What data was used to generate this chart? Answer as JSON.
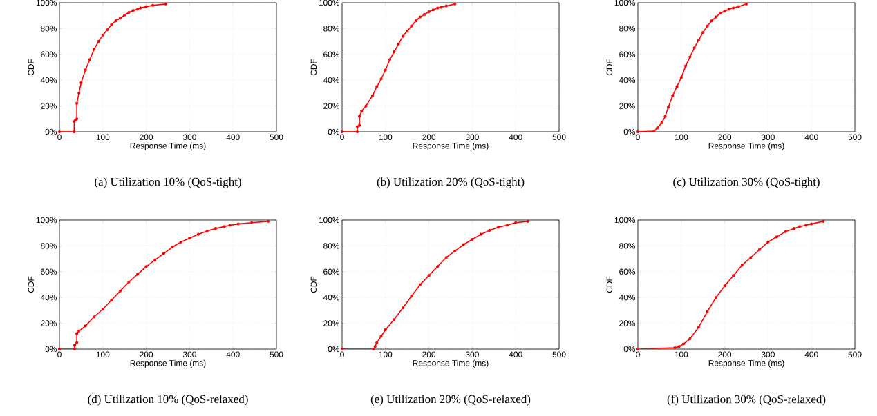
{
  "chart_data": [
    {
      "type": "line",
      "title": "(a) Utilization 10% (QoS-tight)",
      "xlabel": "Response Time (ms)",
      "ylabel": "CDF",
      "color": "#ff0000",
      "marker": "circle",
      "grid": true,
      "xlim": [
        0,
        500
      ],
      "xticks": [
        0,
        100,
        200,
        300,
        400,
        500
      ],
      "ylim": [
        0,
        100
      ],
      "yticks": [
        {
          "value": 0,
          "label": "0%"
        },
        {
          "value": 20,
          "label": "20%"
        },
        {
          "value": 40,
          "label": "40%"
        },
        {
          "value": 60,
          "label": "60%"
        },
        {
          "value": 80,
          "label": "80%"
        },
        {
          "value": 100,
          "label": "100%"
        }
      ],
      "x": [
        0,
        34,
        34,
        37,
        40,
        40,
        45,
        50,
        60,
        70,
        80,
        90,
        100,
        110,
        120,
        130,
        140,
        150,
        160,
        170,
        180,
        187,
        200,
        215,
        245
      ],
      "values": [
        0,
        0,
        8,
        9,
        10,
        22,
        30,
        38,
        48,
        56,
        64,
        70,
        75,
        79,
        83,
        86,
        88,
        90.5,
        92.5,
        94,
        95,
        96,
        97,
        98,
        99
      ]
    },
    {
      "type": "line",
      "title": "(b) Utilization 20% (QoS-tight)",
      "xlabel": "Response Time (ms)",
      "ylabel": "CDF",
      "color": "#ff0000",
      "marker": "circle",
      "grid": true,
      "xlim": [
        0,
        500
      ],
      "xticks": [
        0,
        100,
        200,
        300,
        400,
        500
      ],
      "ylim": [
        0,
        100
      ],
      "yticks": [
        {
          "value": 0,
          "label": "0%"
        },
        {
          "value": 20,
          "label": "20%"
        },
        {
          "value": 40,
          "label": "40%"
        },
        {
          "value": 60,
          "label": "60%"
        },
        {
          "value": 80,
          "label": "80%"
        },
        {
          "value": 100,
          "label": "100%"
        }
      ],
      "x": [
        0,
        35,
        35,
        40,
        40,
        45,
        55,
        70,
        80,
        90,
        100,
        110,
        120,
        130,
        140,
        150,
        160,
        170,
        180,
        190,
        200,
        210,
        220,
        228,
        240,
        260
      ],
      "values": [
        0,
        0,
        4,
        5,
        12,
        16,
        20,
        28,
        35,
        41,
        48,
        56,
        62,
        68,
        74,
        78,
        82,
        86,
        89,
        91,
        93,
        94.5,
        96,
        96.5,
        97.5,
        99
      ]
    },
    {
      "type": "line",
      "title": "(c) Utilization 30% (QoS-tight)",
      "xlabel": "Response Time (ms)",
      "ylabel": "CDF",
      "color": "#ff0000",
      "marker": "circle",
      "grid": true,
      "xlim": [
        0,
        500
      ],
      "xticks": [
        0,
        100,
        200,
        300,
        400,
        500
      ],
      "ylim": [
        0,
        100
      ],
      "yticks": [
        {
          "value": 0,
          "label": "0%"
        },
        {
          "value": 20,
          "label": "20%"
        },
        {
          "value": 40,
          "label": "40%"
        },
        {
          "value": 60,
          "label": "60%"
        },
        {
          "value": 80,
          "label": "80%"
        },
        {
          "value": 100,
          "label": "100%"
        }
      ],
      "x": [
        0,
        37,
        45,
        55,
        63,
        70,
        80,
        90,
        100,
        110,
        120,
        130,
        140,
        150,
        160,
        170,
        180,
        190,
        200,
        210,
        220,
        232,
        250
      ],
      "values": [
        0,
        0.5,
        3,
        7,
        12,
        19,
        28,
        35,
        42,
        51,
        58,
        65,
        71,
        77,
        82,
        86,
        89,
        92,
        93.5,
        95,
        96,
        97,
        99
      ]
    },
    {
      "type": "line",
      "title": "(d) Utilization 10% (QoS-relaxed)",
      "xlabel": "Response Time (ms)",
      "ylabel": "CDF",
      "color": "#ff0000",
      "marker": "circle",
      "grid": true,
      "xlim": [
        0,
        500
      ],
      "xticks": [
        0,
        100,
        200,
        300,
        400,
        500
      ],
      "ylim": [
        0,
        100
      ],
      "yticks": [
        {
          "value": 0,
          "label": "0%"
        },
        {
          "value": 20,
          "label": "20%"
        },
        {
          "value": 40,
          "label": "40%"
        },
        {
          "value": 60,
          "label": "60%"
        },
        {
          "value": 80,
          "label": "80%"
        },
        {
          "value": 100,
          "label": "100%"
        }
      ],
      "x": [
        0,
        35,
        35,
        40,
        40,
        45,
        60,
        80,
        100,
        120,
        140,
        160,
        180,
        200,
        220,
        240,
        260,
        280,
        300,
        320,
        340,
        360,
        380,
        393,
        412,
        443,
        481
      ],
      "values": [
        0,
        0,
        3,
        5,
        12,
        14,
        18,
        25,
        31,
        38,
        45,
        52,
        58,
        64,
        69,
        74,
        79,
        83,
        86,
        89,
        91.5,
        93.5,
        95,
        96,
        97,
        98,
        99
      ]
    },
    {
      "type": "line",
      "title": "(e) Utilization 20% (QoS-relaxed)",
      "xlabel": "Response Time (ms)",
      "ylabel": "CDF",
      "color": "#ff0000",
      "marker": "circle",
      "grid": true,
      "xlim": [
        0,
        500
      ],
      "xticks": [
        0,
        100,
        200,
        300,
        400,
        500
      ],
      "ylim": [
        0,
        100
      ],
      "yticks": [
        {
          "value": 0,
          "label": "0%"
        },
        {
          "value": 20,
          "label": "20%"
        },
        {
          "value": 40,
          "label": "40%"
        },
        {
          "value": 60,
          "label": "60%"
        },
        {
          "value": 80,
          "label": "80%"
        },
        {
          "value": 100,
          "label": "100%"
        }
      ],
      "x": [
        0,
        72,
        76,
        80,
        90,
        100,
        120,
        140,
        160,
        180,
        200,
        220,
        240,
        260,
        280,
        300,
        320,
        340,
        360,
        380,
        400,
        428
      ],
      "values": [
        0,
        0,
        2,
        5,
        10,
        15,
        23,
        32,
        41,
        50,
        57,
        64,
        71,
        76,
        81,
        85,
        89,
        92,
        94.5,
        96,
        98,
        99
      ]
    },
    {
      "type": "line",
      "title": "(f) Utilization 30% (QoS-relaxed)",
      "xlabel": "Response Time (ms)",
      "ylabel": "CDF",
      "color": "#ff0000",
      "marker": "circle",
      "grid": true,
      "xlim": [
        0,
        500
      ],
      "xticks": [
        0,
        100,
        200,
        300,
        400,
        500
      ],
      "ylim": [
        0,
        100
      ],
      "yticks": [
        {
          "value": 0,
          "label": "0%"
        },
        {
          "value": 20,
          "label": "20%"
        },
        {
          "value": 40,
          "label": "40%"
        },
        {
          "value": 60,
          "label": "60%"
        },
        {
          "value": 80,
          "label": "80%"
        },
        {
          "value": 100,
          "label": "100%"
        }
      ],
      "x": [
        0,
        85,
        95,
        105,
        120,
        140,
        160,
        180,
        200,
        220,
        240,
        260,
        280,
        300,
        320,
        340,
        360,
        373,
        387,
        400,
        427
      ],
      "values": [
        0,
        1,
        2,
        4,
        8,
        17,
        29,
        40,
        49,
        57,
        65,
        71,
        77,
        83,
        87,
        91,
        93.5,
        95,
        96,
        97,
        99
      ]
    }
  ]
}
